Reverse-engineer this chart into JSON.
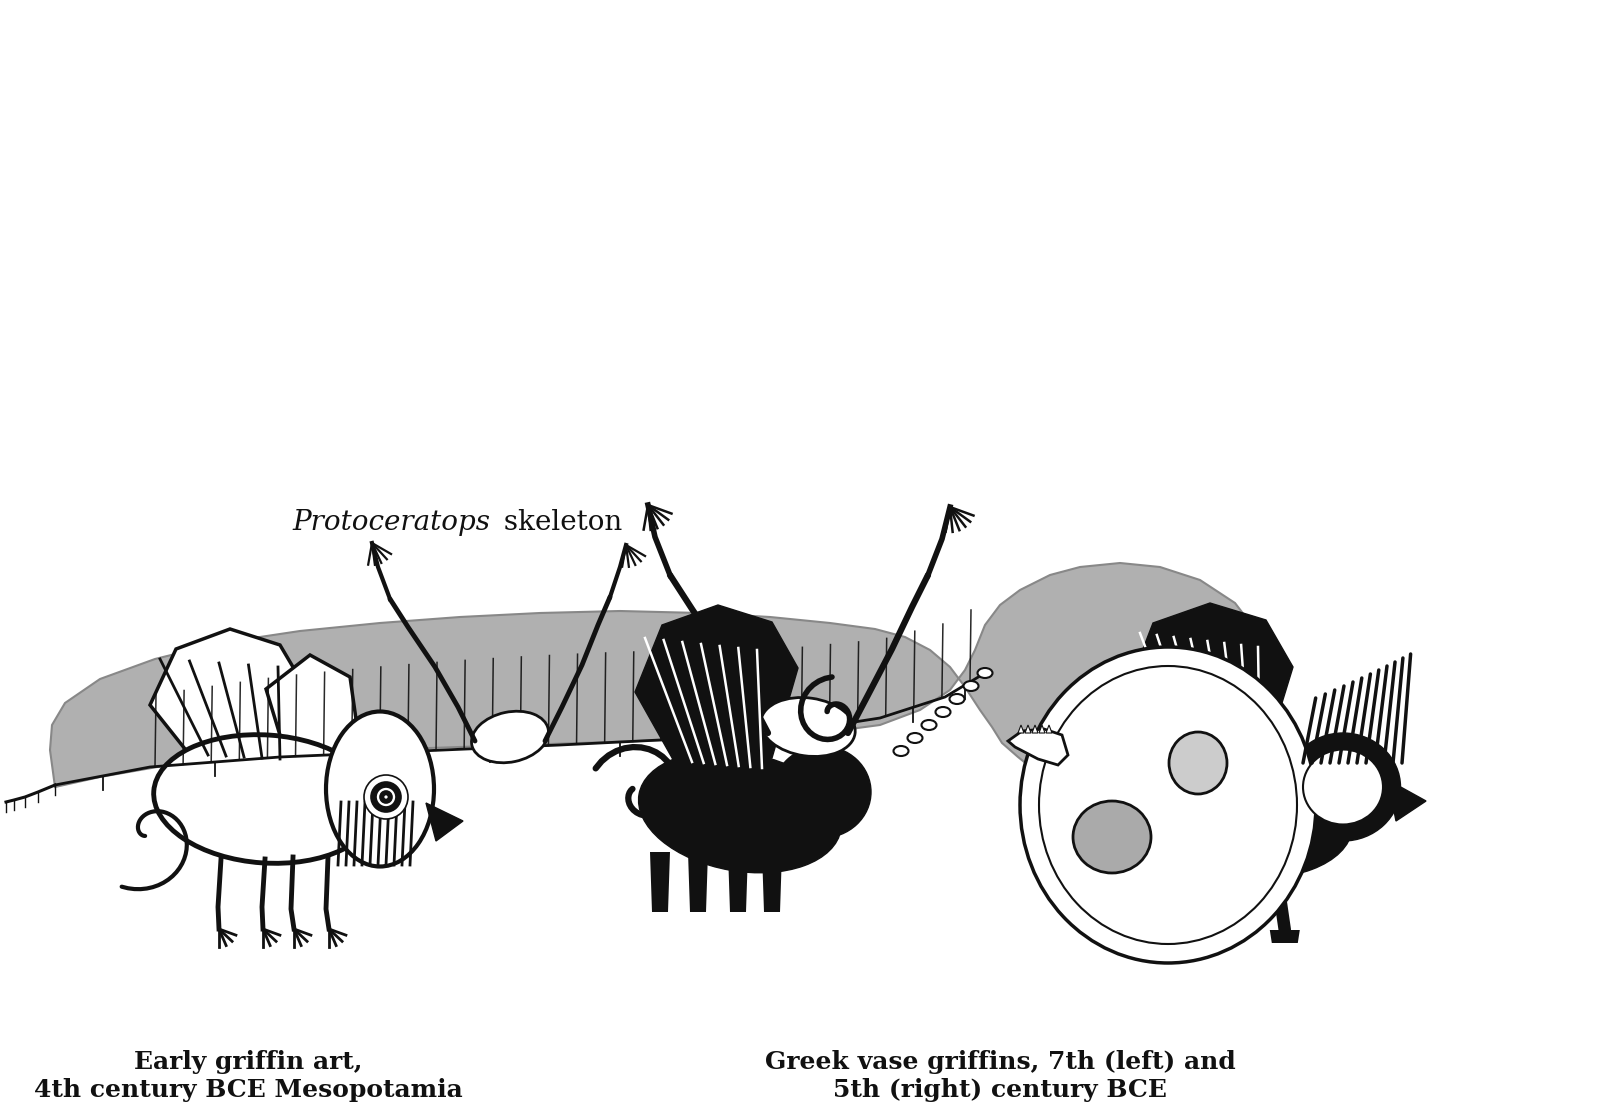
{
  "background_color": "#ffffff",
  "protoceratops_italic": "Protoceratops",
  "protoceratops_regular": " skeleton",
  "griffin_left_label_line1": "Early griffin art,",
  "griffin_left_label_line2": "4th century BCE Mesopotamia",
  "griffin_right_label_line1": "Greek vase griffins, 7th (left) and",
  "griffin_right_label_line2": "5th (right) century BCE",
  "label_fontsize": 18,
  "label_fontweight": "bold",
  "fig_width": 16.0,
  "fig_height": 11.15,
  "dpi": 100,
  "gray_color": "#b0b0b0",
  "dark_gray": "#888888",
  "black_color": "#111111",
  "white_color": "#ffffff"
}
